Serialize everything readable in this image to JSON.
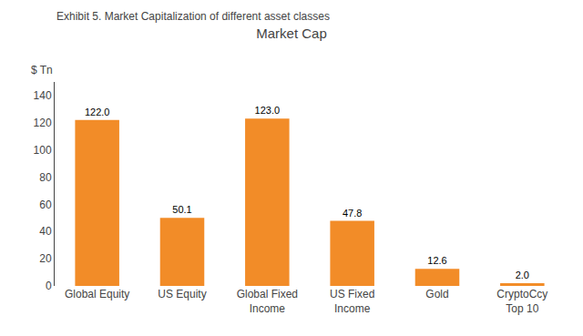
{
  "chart_data": {
    "type": "bar",
    "title": "Market Cap",
    "subtitle": "Exhibit 5. Market Capitalization of different asset classes",
    "ylabel": "$ Tn",
    "categories": [
      "Global Equity",
      "US Equity",
      "Global Fixed\nIncome",
      "US Fixed\nIncome",
      "Gold",
      "CryptoCcy\nTop 10"
    ],
    "values": [
      122.0,
      50.1,
      123.0,
      47.8,
      12.6,
      2.0
    ],
    "value_labels": [
      "122.0",
      "50.1",
      "123.0",
      "47.8",
      "12.6",
      "2.0"
    ],
    "data_labels": true,
    "color": "#F28C28",
    "ylim": [
      0,
      150
    ],
    "yticks": [
      0,
      20,
      40,
      60,
      80,
      100,
      120,
      140
    ],
    "grid": false
  }
}
